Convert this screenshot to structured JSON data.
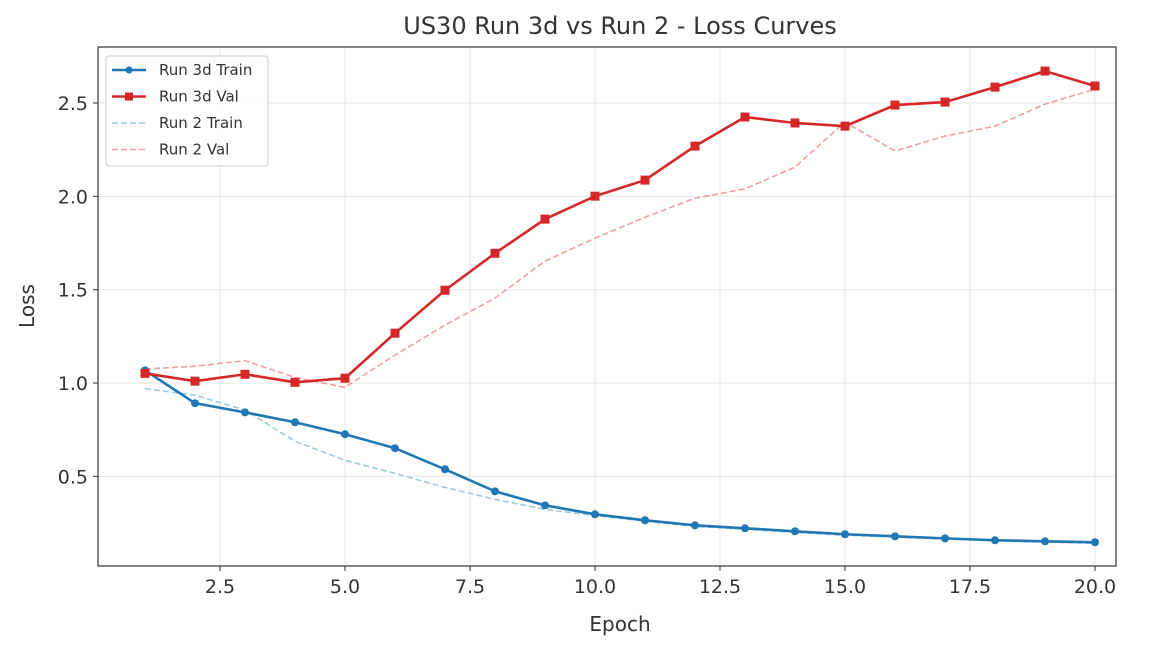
{
  "chart_data": {
    "type": "line",
    "title": "US30 Run 3d vs Run 2 - Loss Curves",
    "xlabel": "Epoch",
    "ylabel": "Loss",
    "xlim": [
      0.06,
      20.42
    ],
    "ylim": [
      0.02,
      2.8
    ],
    "grid": true,
    "legend_position": "top-left",
    "x_ticks": [
      "2.5",
      "5.0",
      "7.5",
      "10.0",
      "12.5",
      "15.0",
      "17.5",
      "20.0"
    ],
    "y_ticks": [
      "0.5",
      "1.0",
      "1.5",
      "2.0",
      "2.5"
    ],
    "x": [
      1,
      2,
      3,
      4,
      5,
      6,
      7,
      8,
      9,
      10,
      11,
      12,
      13,
      14,
      15,
      16,
      17,
      18,
      19,
      20
    ],
    "series": [
      {
        "name": "Run 3d Train",
        "color": "#1f77b4",
        "style": "solid",
        "marker": "circle",
        "values": [
          1.068,
          0.892,
          0.843,
          0.79,
          0.726,
          0.651,
          0.538,
          0.42,
          0.345,
          0.297,
          0.265,
          0.238,
          0.222,
          0.206,
          0.19,
          0.179,
          0.168,
          0.158,
          0.152,
          0.147
        ]
      },
      {
        "name": "Run 3d Val",
        "color": "#d62728",
        "style": "solid",
        "marker": "square",
        "values": [
          1.052,
          1.01,
          1.047,
          1.004,
          1.026,
          1.267,
          1.497,
          1.695,
          1.878,
          2.001,
          2.087,
          2.269,
          2.425,
          2.393,
          2.376,
          2.489,
          2.505,
          2.585,
          2.671,
          2.591
        ]
      },
      {
        "name": "Run 2 Train",
        "color": "#9ecae1",
        "style": "dashed",
        "marker": "none",
        "values": [
          0.97,
          0.935,
          0.855,
          0.688,
          0.586,
          0.516,
          0.441,
          0.377,
          0.323,
          0.29,
          0.26,
          0.232,
          0.217,
          0.2,
          0.185,
          0.175,
          0.164,
          0.155,
          0.148,
          0.142
        ]
      },
      {
        "name": "Run 2 Val",
        "color": "#f0a0a0",
        "style": "dashed",
        "marker": "none",
        "values": [
          1.075,
          1.09,
          1.12,
          1.03,
          0.977,
          1.15,
          1.31,
          1.455,
          1.653,
          1.776,
          1.888,
          1.99,
          2.04,
          2.157,
          2.398,
          2.243,
          2.323,
          2.376,
          2.494,
          2.575
        ]
      }
    ]
  }
}
